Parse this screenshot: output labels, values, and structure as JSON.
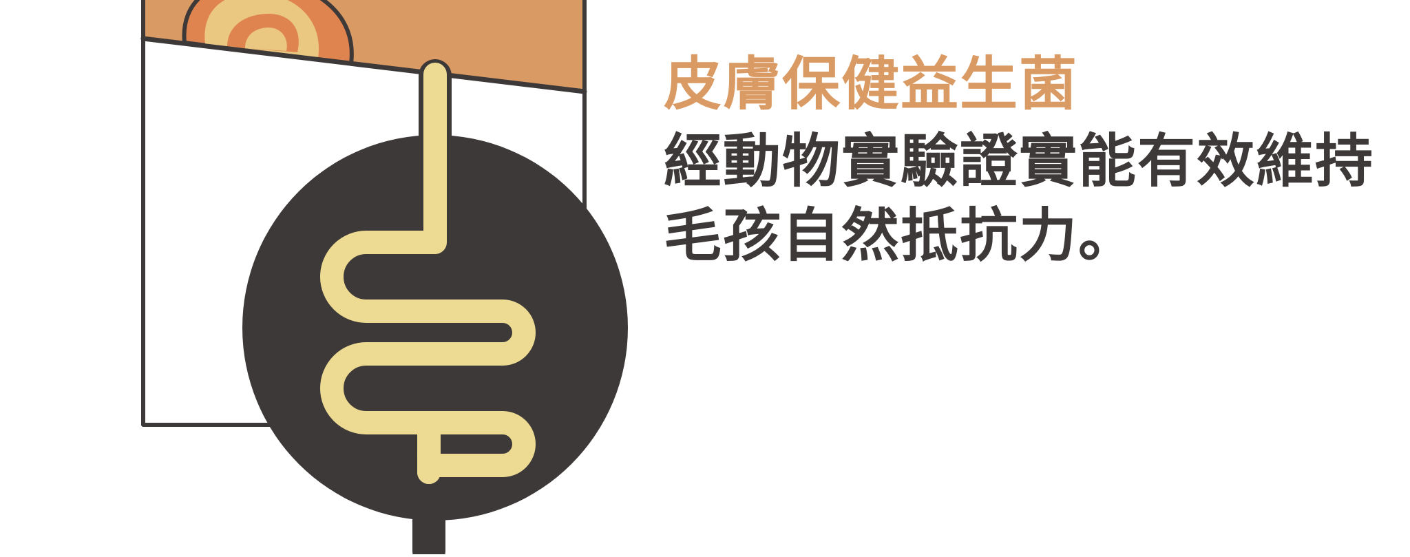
{
  "colors": {
    "accent": "#DA9A63",
    "dark": "#3D3938",
    "cream": "#EEDB93",
    "inner_orange": "#E0844F",
    "inner_cream": "#EAC882",
    "background": "#FFFFFF"
  },
  "illustration": {
    "icon": "intestine-icon",
    "subject": "intestine-in-dark-circle"
  },
  "text": {
    "headline": "皮膚保健益生菌",
    "body_lines": [
      "經動物實驗證實能有效維持",
      "毛孩自然抵抗力。"
    ]
  }
}
